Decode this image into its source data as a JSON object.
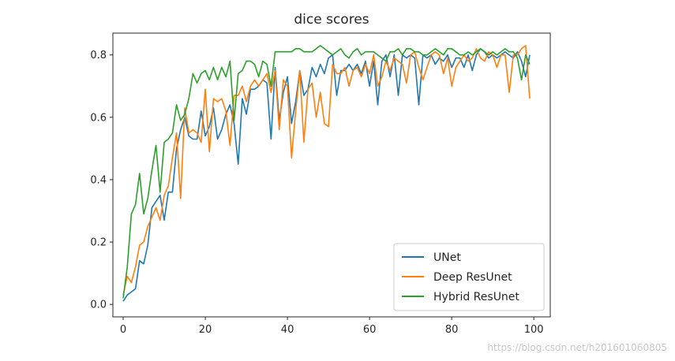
{
  "chart_data": {
    "type": "line",
    "title": "dice scores",
    "xlabel": "",
    "ylabel": "",
    "xlim": [
      -2.5,
      104
    ],
    "ylim": [
      -0.04,
      0.87
    ],
    "xticks": [
      0,
      20,
      40,
      60,
      80,
      100
    ],
    "yticks": [
      0.0,
      0.2,
      0.4,
      0.6,
      0.8
    ],
    "grid": false,
    "legend_position": "bottom-right",
    "series": [
      {
        "name": "UNet",
        "color": "#1f77b4",
        "values": [
          0.01,
          0.03,
          0.04,
          0.05,
          0.14,
          0.13,
          0.19,
          0.31,
          0.33,
          0.35,
          0.27,
          0.36,
          0.36,
          0.5,
          0.56,
          0.6,
          0.54,
          0.53,
          0.53,
          0.62,
          0.54,
          0.57,
          0.63,
          0.53,
          0.56,
          0.61,
          0.64,
          0.58,
          0.45,
          0.66,
          0.61,
          0.69,
          0.69,
          0.7,
          0.72,
          0.71,
          0.53,
          0.76,
          0.59,
          0.68,
          0.73,
          0.58,
          0.65,
          0.75,
          0.67,
          0.69,
          0.76,
          0.73,
          0.77,
          0.74,
          0.79,
          0.8,
          0.67,
          0.75,
          0.75,
          0.77,
          0.75,
          0.77,
          0.74,
          0.78,
          0.7,
          0.78,
          0.64,
          0.78,
          0.8,
          0.73,
          0.8,
          0.67,
          0.8,
          0.79,
          0.8,
          0.79,
          0.64,
          0.8,
          0.79,
          0.8,
          0.77,
          0.79,
          0.78,
          0.8,
          0.76,
          0.79,
          0.79,
          0.76,
          0.8,
          0.75,
          0.8,
          0.82,
          0.81,
          0.79,
          0.8,
          0.79,
          0.8,
          0.81,
          0.8,
          0.79,
          0.81,
          0.78,
          0.73,
          0.8
        ]
      },
      {
        "name": "Deep ResUnet",
        "color": "#ff7f0e",
        "values": [
          0.03,
          0.09,
          0.07,
          0.12,
          0.19,
          0.2,
          0.25,
          0.28,
          0.31,
          0.27,
          0.35,
          0.38,
          0.47,
          0.55,
          0.34,
          0.63,
          0.55,
          0.56,
          0.55,
          0.52,
          0.69,
          0.49,
          0.66,
          0.65,
          0.66,
          0.62,
          0.51,
          0.67,
          0.67,
          0.7,
          0.65,
          0.7,
          0.72,
          0.7,
          0.72,
          0.74,
          0.68,
          0.75,
          0.56,
          0.72,
          0.7,
          0.47,
          0.62,
          0.75,
          0.52,
          0.69,
          0.71,
          0.6,
          0.68,
          0.58,
          0.57,
          0.77,
          0.74,
          0.74,
          0.76,
          0.7,
          0.75,
          0.76,
          0.73,
          0.77,
          0.74,
          0.8,
          0.7,
          0.73,
          0.78,
          0.75,
          0.79,
          0.78,
          0.77,
          0.71,
          0.8,
          0.81,
          0.76,
          0.72,
          0.76,
          0.8,
          0.81,
          0.8,
          0.74,
          0.79,
          0.7,
          0.76,
          0.78,
          0.8,
          0.78,
          0.79,
          0.82,
          0.79,
          0.78,
          0.81,
          0.8,
          0.76,
          0.8,
          0.8,
          0.68,
          0.8,
          0.8,
          0.82,
          0.83,
          0.66
        ]
      },
      {
        "name": "Hybrid ResUnet",
        "color": "#2ca02c",
        "values": [
          0.02,
          0.12,
          0.29,
          0.32,
          0.42,
          0.29,
          0.34,
          0.43,
          0.51,
          0.36,
          0.52,
          0.53,
          0.55,
          0.64,
          0.59,
          0.61,
          0.66,
          0.74,
          0.71,
          0.74,
          0.75,
          0.72,
          0.76,
          0.72,
          0.76,
          0.73,
          0.78,
          0.59,
          0.74,
          0.75,
          0.78,
          0.78,
          0.77,
          0.73,
          0.78,
          0.77,
          0.7,
          0.81,
          0.81,
          0.81,
          0.81,
          0.81,
          0.82,
          0.82,
          0.81,
          0.81,
          0.81,
          0.82,
          0.83,
          0.82,
          0.81,
          0.8,
          0.81,
          0.82,
          0.8,
          0.79,
          0.81,
          0.82,
          0.8,
          0.81,
          0.81,
          0.81,
          0.8,
          0.79,
          0.78,
          0.81,
          0.81,
          0.82,
          0.8,
          0.82,
          0.82,
          0.81,
          0.81,
          0.8,
          0.8,
          0.81,
          0.82,
          0.81,
          0.8,
          0.82,
          0.82,
          0.81,
          0.8,
          0.8,
          0.81,
          0.8,
          0.81,
          0.82,
          0.81,
          0.8,
          0.81,
          0.8,
          0.81,
          0.82,
          0.81,
          0.81,
          0.79,
          0.72,
          0.8,
          0.77
        ]
      }
    ]
  },
  "watermark": "https://blog.csdn.net/h201601060805"
}
